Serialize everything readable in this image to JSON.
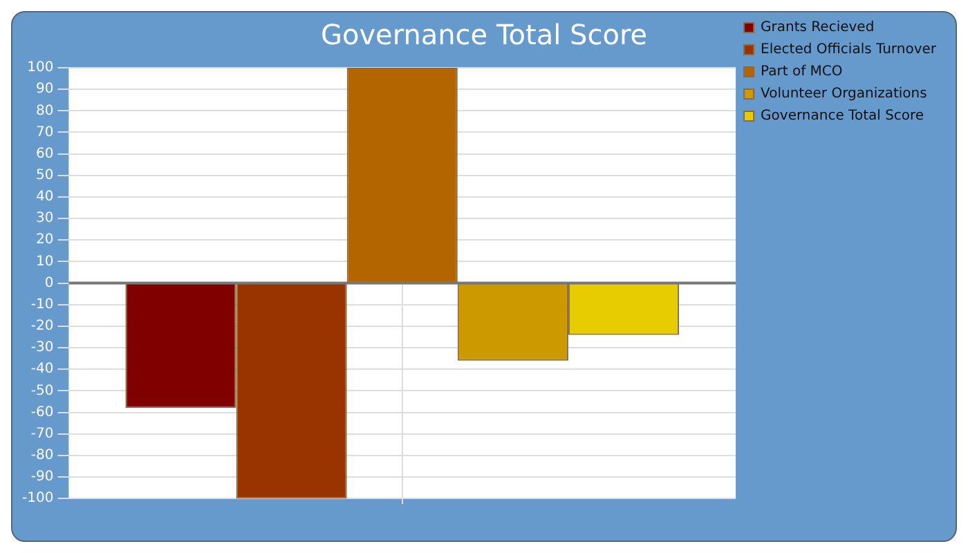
{
  "chart_data": {
    "type": "bar",
    "title": "Governance Total Score",
    "categories": [
      null
    ],
    "series": [
      {
        "name": "Grants Recieved",
        "color": "#800000",
        "values": [
          -58
        ]
      },
      {
        "name": "Elected Officials Turnover",
        "color": "#993300",
        "values": [
          -100
        ]
      },
      {
        "name": "Part of MCO",
        "color": "#b36600",
        "values": [
          100
        ]
      },
      {
        "name": "Volunteer Organizations",
        "color": "#cc9900",
        "values": [
          -36
        ]
      },
      {
        "name": "Governance Total Score",
        "color": "#e6cc00",
        "values": [
          -24
        ]
      }
    ],
    "ylim": [
      -100,
      100
    ],
    "yticks": [
      -100,
      -90,
      -80,
      -70,
      -60,
      -50,
      -40,
      -30,
      -20,
      -10,
      0,
      10,
      20,
      30,
      40,
      50,
      60,
      70,
      80,
      90,
      100
    ],
    "grid": true,
    "legend": "right"
  }
}
